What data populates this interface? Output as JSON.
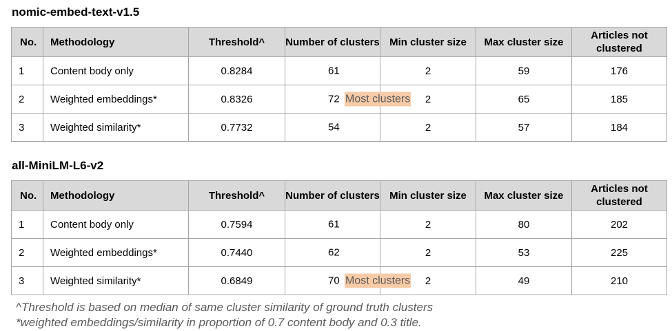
{
  "columns": [
    "No.",
    "Methodology",
    "Threshold^",
    "Number of clusters",
    "Min cluster size",
    "Max cluster size",
    "Articles not clustered"
  ],
  "tables": [
    {
      "title": "nomic-embed-text-v1.5",
      "rows": [
        {
          "no": "1",
          "method": "Content body only",
          "threshold": "0.8284",
          "clusters": "61",
          "badge": "",
          "min": "2",
          "max": "59",
          "not_clustered": "176"
        },
        {
          "no": "2",
          "method": "Weighted embeddings*",
          "threshold": "0.8326",
          "clusters": "72",
          "badge": "Most clusters",
          "min": "2",
          "max": "65",
          "not_clustered": "185"
        },
        {
          "no": "3",
          "method": "Weighted similarity*",
          "threshold": "0.7732",
          "clusters": "54",
          "badge": "",
          "min": "2",
          "max": "57",
          "not_clustered": "184"
        }
      ]
    },
    {
      "title": "all-MiniLM-L6-v2",
      "rows": [
        {
          "no": "1",
          "method": "Content body only",
          "threshold": "0.7594",
          "clusters": "61",
          "badge": "",
          "min": "2",
          "max": "80",
          "not_clustered": "202"
        },
        {
          "no": "2",
          "method": "Weighted embeddings*",
          "threshold": "0.7440",
          "clusters": "62",
          "badge": "",
          "min": "2",
          "max": "53",
          "not_clustered": "225"
        },
        {
          "no": "3",
          "method": "Weighted similarity*",
          "threshold": "0.6849",
          "clusters": "70",
          "badge": "Most clusters",
          "min": "2",
          "max": "49",
          "not_clustered": "210"
        }
      ]
    }
  ],
  "footnotes": [
    "^Threshold is based on median of same cluster similarity of ground truth clusters",
    "*weighted embeddings/similarity in proportion of 0.7 content body and 0.3 title."
  ],
  "colors": {
    "header_bg": "#d9d9d9",
    "badge_bg": "#f8cba7",
    "border": "#a6a6a6"
  }
}
